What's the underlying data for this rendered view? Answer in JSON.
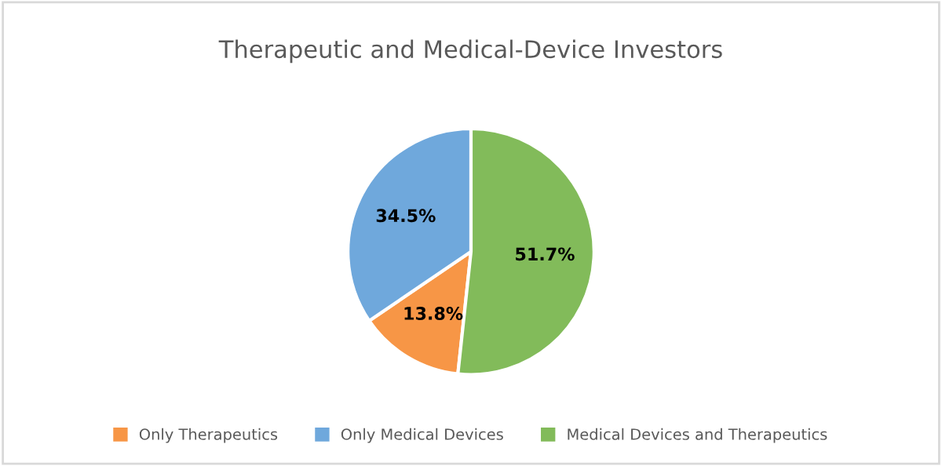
{
  "chart_data": {
    "type": "pie",
    "title": "Therapeutic and Medical-Device Investors",
    "categories": [
      "Only Therapeutics",
      "Only Medical Devices",
      "Medical Devices and Therapeutics"
    ],
    "values": [
      13.8,
      34.5,
      51.7
    ],
    "colors": [
      "#f79646",
      "#6fa8dc",
      "#82bb5a"
    ],
    "value_labels": [
      "13.8%",
      "34.5%",
      "51.7%"
    ],
    "legend": "bottom"
  }
}
